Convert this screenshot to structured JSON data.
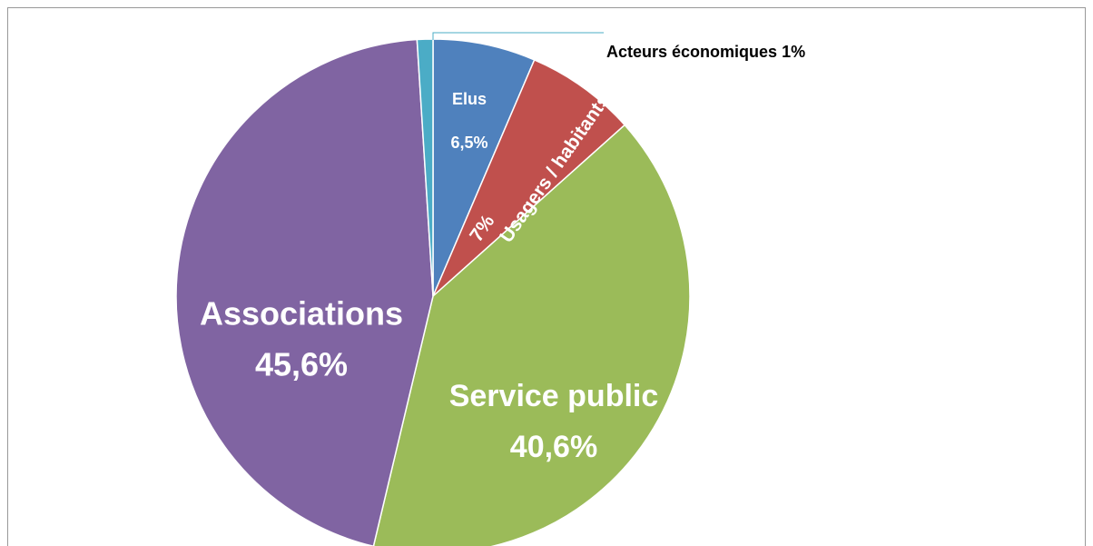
{
  "chart_data": {
    "type": "pie",
    "categories": [
      "Elus",
      "Usagers / habitants",
      "Service public",
      "Associations",
      "Acteurs économiques"
    ],
    "values": [
      6.5,
      7,
      40.6,
      45.6,
      1
    ],
    "value_labels": [
      "6,5%",
      "7%",
      "40,6%",
      "45,6%",
      "1%"
    ],
    "colors": [
      "#4f81bd",
      "#c0504d",
      "#9bbb59",
      "#8064a2",
      "#4bacc6"
    ]
  }
}
